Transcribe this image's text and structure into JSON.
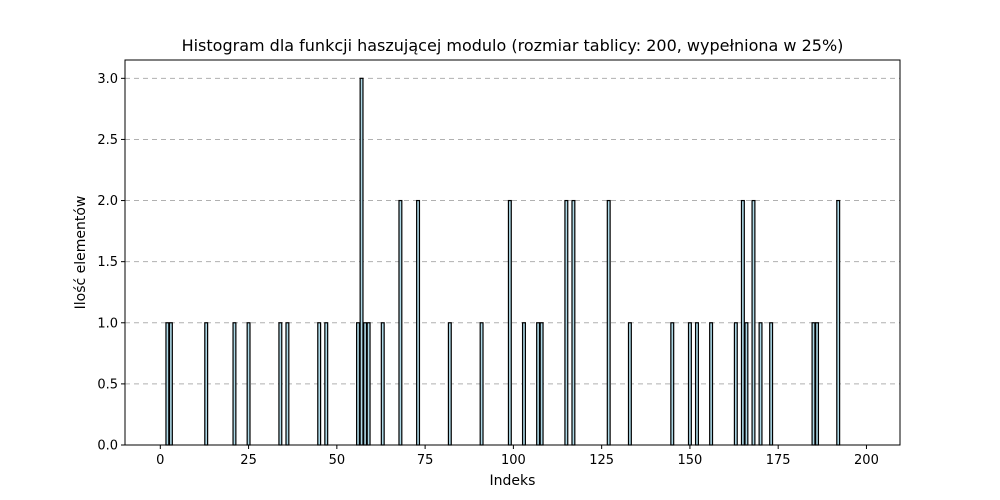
{
  "chart_data": {
    "type": "bar",
    "title": "Histogram dla funkcji haszującej modulo (rozmiar tablicy: 200, wypełniona w 25%)",
    "xlabel": "Indeks",
    "ylabel": "Ilość elementów",
    "xlim": [
      -10,
      209.5
    ],
    "ylim": [
      0,
      3.15
    ],
    "xticks": [
      0,
      25,
      50,
      75,
      100,
      125,
      150,
      175,
      200
    ],
    "yticks": [
      0.0,
      0.5,
      1.0,
      1.5,
      2.0,
      2.5,
      3.0
    ],
    "grid": "y-dashed",
    "bar_color": "#add8e6",
    "edge_color": "#000000",
    "x": [
      2,
      3,
      13,
      21,
      25,
      34,
      36,
      45,
      47,
      56,
      57,
      58,
      59,
      63,
      68,
      73,
      82,
      91,
      99,
      103,
      107,
      108,
      115,
      117,
      127,
      133,
      145,
      150,
      152,
      156,
      163,
      165,
      166,
      168,
      170,
      173,
      185,
      186,
      192
    ],
    "values": [
      1,
      1,
      1,
      1,
      1,
      1,
      1,
      1,
      1,
      1,
      3,
      1,
      1,
      1,
      2,
      2,
      1,
      1,
      2,
      1,
      1,
      1,
      2,
      2,
      2,
      1,
      1,
      1,
      1,
      1,
      1,
      2,
      1,
      2,
      1,
      1,
      1,
      1,
      2
    ]
  }
}
